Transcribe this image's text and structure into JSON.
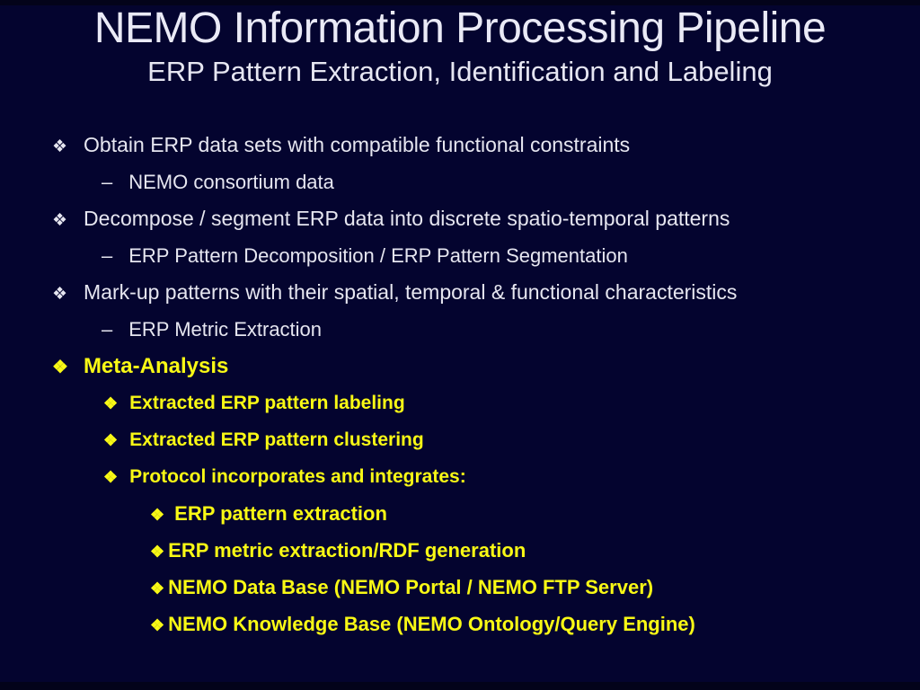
{
  "slide": {
    "title": "NEMO Information Processing Pipeline",
    "subtitle": "ERP Pattern Extraction, Identification and Labeling",
    "colors": {
      "background": "#04042f",
      "white_text": "#e8e8f4",
      "yellow_text": "#f9f915"
    },
    "items": [
      {
        "marker": "❖",
        "text": "Obtain ERP data sets with compatible functional constraints"
      },
      {
        "marker": "–",
        "text": "NEMO consortium data"
      },
      {
        "marker": "❖",
        "text": "Decompose / segment ERP data into discrete spatio-temporal patterns"
      },
      {
        "marker": "–",
        "text": "ERP Pattern Decomposition / ERP Pattern Segmentation"
      },
      {
        "marker": "❖",
        "text": "Mark-up patterns with their spatial, temporal & functional characteristics"
      },
      {
        "marker": "–",
        "text": "ERP Metric Extraction"
      },
      {
        "marker": "❖",
        "text": "Meta-Analysis"
      },
      {
        "marker": "❖",
        "text": "Extracted ERP pattern labeling"
      },
      {
        "marker": "❖",
        "text": "Extracted ERP pattern clustering"
      },
      {
        "marker": "❖",
        "text": "Protocol incorporates and integrates:"
      },
      {
        "marker": "❖",
        "text": "ERP pattern extraction"
      },
      {
        "marker": "❖",
        "text": "ERP metric extraction/RDF generation"
      },
      {
        "marker": "❖",
        "text": "NEMO Data Base (NEMO Portal / NEMO FTP Server)"
      },
      {
        "marker": "❖",
        "text": "NEMO Knowledge Base (NEMO Ontology/Query Engine)"
      }
    ]
  }
}
